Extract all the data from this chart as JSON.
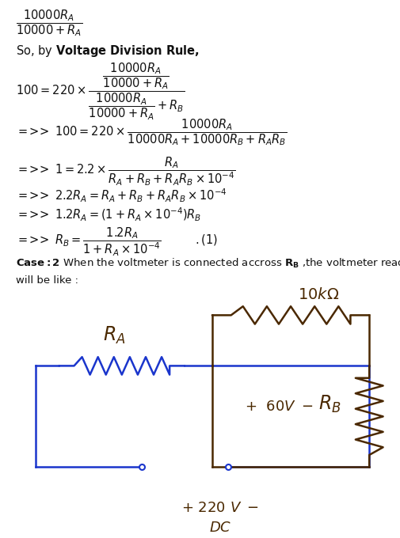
{
  "blue": "#1a35cc",
  "brown": "#4a2800",
  "gray_bg": "#c8c4bc",
  "white": "#ffffff",
  "black": "#111111",
  "fig_w": 5.06,
  "fig_h": 6.8,
  "dpi": 100
}
